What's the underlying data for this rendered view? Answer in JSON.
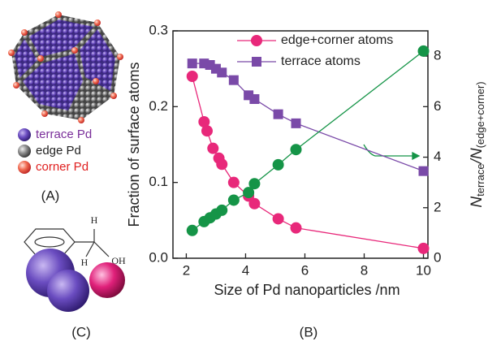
{
  "chart_data": {
    "type": "line",
    "xlabel": "Size of Pd nanoparticles /nm",
    "ylabel": "Fraction of surface atoms",
    "y2label": {
      "main": "N",
      "sub1": "terrace",
      "mid": "/N",
      "sub2": "(edge+corner)"
    },
    "xlim": [
      1.55,
      10.15
    ],
    "xticks": [
      2,
      4,
      6,
      8,
      10
    ],
    "ylim": [
      0,
      0.3
    ],
    "yticks": [
      {
        "value": 0,
        "label": "0.0"
      },
      0.1,
      0.2,
      0.3
    ],
    "y2lim": [
      0,
      9
    ],
    "y2ticks": [
      0,
      2,
      4,
      6,
      8
    ],
    "series": [
      {
        "name": "edge+corner atoms",
        "color": "#e8287a",
        "marker": "circle",
        "x": [
          2.2,
          2.6,
          2.7,
          2.9,
          3.1,
          3.2,
          3.6,
          4.1,
          4.3,
          5.1,
          5.7,
          10
        ],
        "values": [
          0.24,
          0.18,
          0.168,
          0.145,
          0.132,
          0.124,
          0.1,
          0.082,
          0.072,
          0.052,
          0.04,
          0.013
        ]
      },
      {
        "name": "terrace atoms",
        "color": "#7a4aa8",
        "marker": "square",
        "x": [
          2.2,
          2.6,
          2.8,
          3.0,
          3.2,
          3.6,
          4.1,
          4.3,
          5.1,
          5.7,
          10
        ],
        "values": [
          0.257,
          0.257,
          0.255,
          0.25,
          0.245,
          0.235,
          0.215,
          0.21,
          0.19,
          0.178,
          0.115
        ]
      },
      {
        "color": "#159447",
        "marker": "circle",
        "axis": "y2",
        "x": [
          2.2,
          2.6,
          2.8,
          3.0,
          3.2,
          3.6,
          4.1,
          4.3,
          5.1,
          5.7,
          10
        ],
        "values": [
          1.1,
          1.45,
          1.6,
          1.75,
          1.9,
          2.3,
          2.6,
          2.95,
          3.7,
          4.3,
          8.2
        ]
      }
    ],
    "panel_label": "(B)"
  },
  "panel_a": {
    "legend": [
      "terrace Pd",
      "edge Pd",
      "corner Pd"
    ],
    "label": "(A)"
  },
  "panel_c": {
    "atoms": [
      "H",
      "H",
      "OH"
    ],
    "label": "(C)"
  }
}
